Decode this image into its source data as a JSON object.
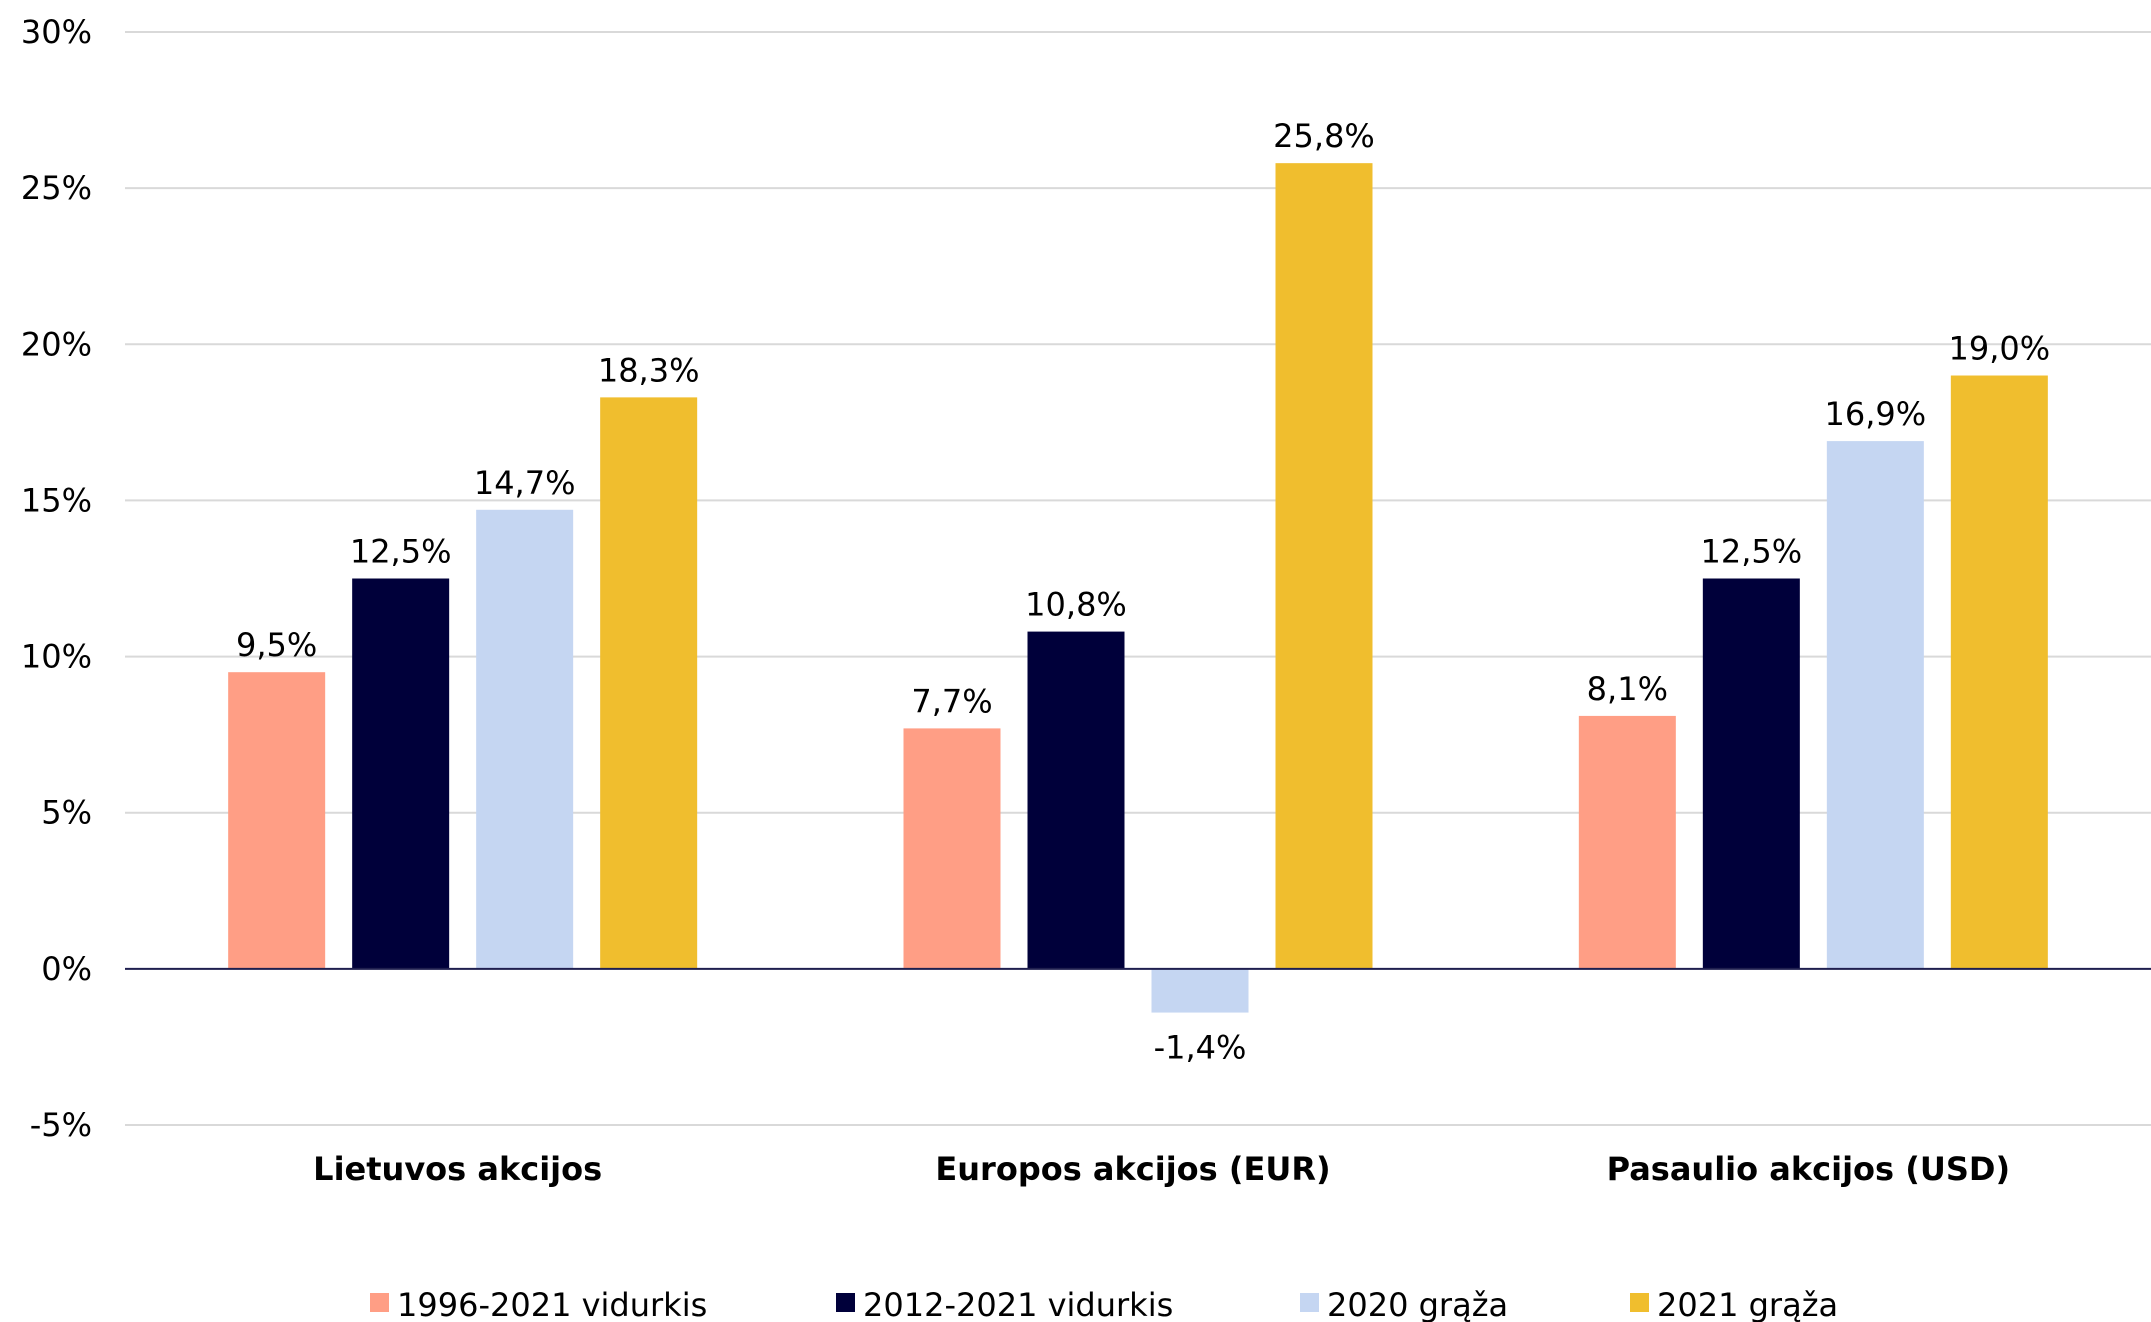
{
  "chart_data": {
    "type": "bar",
    "categories": [
      "Lietuvos akcijos",
      "Europos akcijos (EUR)",
      "Pasaulio akcijos (USD)"
    ],
    "series": [
      {
        "name": "1996-2021 vidurkis",
        "values": [
          9.5,
          7.7,
          8.1
        ],
        "labels": [
          "9,5%",
          "7,7%",
          "8,1%"
        ],
        "color": "#FF9E85"
      },
      {
        "name": "2012-2021 vidurkis",
        "values": [
          12.5,
          10.8,
          12.5
        ],
        "labels": [
          "12,5%",
          "10,8%",
          "12,5%"
        ],
        "color": "#00003A"
      },
      {
        "name": "2020 grąža",
        "values": [
          14.7,
          -1.4,
          16.9
        ],
        "labels": [
          "14,7%",
          "-1,4%",
          "16,9%"
        ],
        "color": "#C5D6F2"
      },
      {
        "name": "2021 grąža",
        "values": [
          18.3,
          25.8,
          19.0
        ],
        "labels": [
          "18,3%",
          "25,8%",
          "19,0%"
        ],
        "color": "#F0BE2E"
      }
    ],
    "ylim": [
      -5,
      30
    ],
    "yticks": [
      {
        "value": 30,
        "label": "30%"
      },
      {
        "value": 25,
        "label": "25%"
      },
      {
        "value": 20,
        "label": "20%"
      },
      {
        "value": 15,
        "label": "15%"
      },
      {
        "value": 10,
        "label": "10%"
      },
      {
        "value": 5,
        "label": "5%"
      },
      {
        "value": 0,
        "label": "0%"
      },
      {
        "value": -5,
        "label": "-5%"
      }
    ],
    "grid": true,
    "legend": "bottom",
    "title": "",
    "xlabel": "",
    "ylabel": ""
  }
}
